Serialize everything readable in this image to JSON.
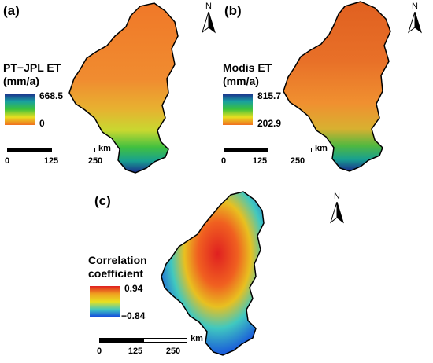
{
  "panels": [
    {
      "label": "(a)",
      "legend_title_line1": "PT−JPL ET",
      "legend_title_line2": "(mm/a)",
      "legend_max": "668.5",
      "legend_min": "0",
      "colors": [
        "#1a2a8c",
        "#18a0a0",
        "#3cc23c",
        "#e8e020",
        "#f07020"
      ]
    },
    {
      "label": "(b)",
      "legend_title_line1": "Modis ET",
      "legend_title_line2": "(mm/a)",
      "legend_max": "815.7",
      "legend_min": "202.9",
      "colors": [
        "#1a2a8c",
        "#18a0a0",
        "#3cc23c",
        "#e8e020",
        "#f07020"
      ]
    },
    {
      "label": "(c)",
      "legend_title_line1": "Correlation",
      "legend_title_line2": "coefficient",
      "legend_max": "0.94",
      "legend_min": "−0.84",
      "colors": [
        "#e02020",
        "#f0a020",
        "#e8e020",
        "#40c8c0",
        "#1040e0"
      ]
    }
  ],
  "scalebar": {
    "unit": "km",
    "ticks": [
      "0",
      "125",
      "250"
    ]
  },
  "north_label": "N"
}
